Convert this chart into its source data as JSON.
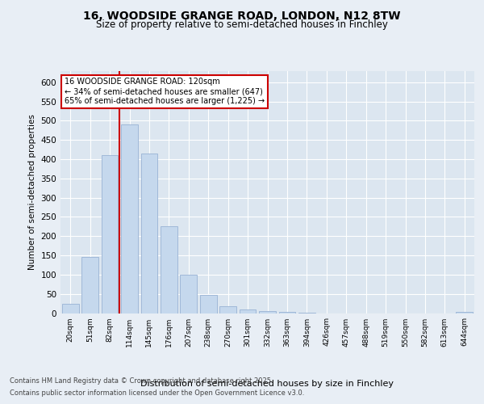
{
  "title_line1": "16, WOODSIDE GRANGE ROAD, LONDON, N12 8TW",
  "title_line2": "Size of property relative to semi-detached houses in Finchley",
  "xlabel": "Distribution of semi-detached houses by size in Finchley",
  "ylabel": "Number of semi-detached properties",
  "categories": [
    "20sqm",
    "51sqm",
    "82sqm",
    "114sqm",
    "145sqm",
    "176sqm",
    "207sqm",
    "238sqm",
    "270sqm",
    "301sqm",
    "332sqm",
    "363sqm",
    "394sqm",
    "426sqm",
    "457sqm",
    "488sqm",
    "519sqm",
    "550sqm",
    "582sqm",
    "613sqm",
    "644sqm"
  ],
  "values": [
    25,
    145,
    410,
    490,
    415,
    225,
    100,
    47,
    17,
    10,
    6,
    3,
    1,
    0,
    0,
    0,
    0,
    0,
    0,
    0,
    4
  ],
  "bar_color": "#c5d8ed",
  "bar_edge_color": "#a0b8d8",
  "vline_color": "#cc0000",
  "vline_x_index": 3,
  "annotation_text": "16 WOODSIDE GRANGE ROAD: 120sqm\n← 34% of semi-detached houses are smaller (647)\n65% of semi-detached houses are larger (1,225) →",
  "annotation_box_color": "#ffffff",
  "annotation_box_edge_color": "#cc0000",
  "footer_line1": "Contains HM Land Registry data © Crown copyright and database right 2025.",
  "footer_line2": "Contains public sector information licensed under the Open Government Licence v3.0.",
  "bg_color": "#e8eef5",
  "plot_bg_color": "#dce6f0",
  "grid_color": "#ffffff",
  "ylim": [
    0,
    630
  ],
  "yticks": [
    0,
    50,
    100,
    150,
    200,
    250,
    300,
    350,
    400,
    450,
    500,
    550,
    600
  ]
}
